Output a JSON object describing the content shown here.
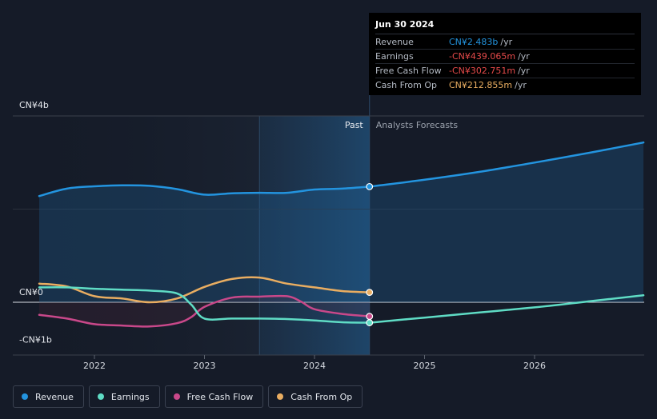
{
  "chart_data": {
    "type": "line",
    "title": "",
    "xlabel": "",
    "ylabel": "",
    "ylim": [
      -1.0,
      4.0
    ],
    "x_ticks": [
      {
        "label": "2022",
        "value": 2022.0
      },
      {
        "label": "2023",
        "value": 2023.0
      },
      {
        "label": "2024",
        "value": 2024.0
      },
      {
        "label": "2025",
        "value": 2025.0
      },
      {
        "label": "2026",
        "value": 2026.0
      }
    ],
    "y_labels": [
      {
        "label": "CN¥4b",
        "value": 4.0
      },
      {
        "label": "CN¥0",
        "value": 0.0
      },
      {
        "label": "-CN¥1b",
        "value": -1.0
      }
    ],
    "past_label": "Past",
    "forecast_label": "Analysts Forecasts",
    "split_x": 2024.5,
    "highlight_start_x": 2023.5,
    "series": [
      {
        "name": "Revenue",
        "color": "#2394df",
        "x": [
          2021.5,
          2021.75,
          2022.0,
          2022.25,
          2022.5,
          2022.75,
          2023.0,
          2023.25,
          2023.5,
          2023.75,
          2024.0,
          2024.25,
          2024.5
        ],
        "values": [
          2.28,
          2.44,
          2.49,
          2.51,
          2.5,
          2.43,
          2.31,
          2.34,
          2.35,
          2.35,
          2.42,
          2.44,
          2.483
        ],
        "forecast_x": [
          2024.5,
          2025.0,
          2025.5,
          2026.0,
          2026.5,
          2026.99
        ],
        "forecast_values": [
          2.483,
          2.63,
          2.8,
          3.0,
          3.21,
          3.43
        ]
      },
      {
        "name": "Earnings",
        "color": "#5fdcc5",
        "x": [
          2021.5,
          2021.75,
          2022.0,
          2022.25,
          2022.5,
          2022.75,
          2022.88,
          2023.0,
          2023.25,
          2023.5,
          2023.75,
          2024.0,
          2024.25,
          2024.5
        ],
        "values": [
          0.32,
          0.32,
          0.29,
          0.27,
          0.25,
          0.19,
          -0.05,
          -0.35,
          -0.35,
          -0.35,
          -0.36,
          -0.39,
          -0.43,
          -0.439
        ],
        "forecast_x": [
          2024.5,
          2025.0,
          2025.5,
          2026.0,
          2026.5,
          2026.99
        ],
        "forecast_values": [
          -0.439,
          -0.33,
          -0.22,
          -0.11,
          0.02,
          0.15
        ]
      },
      {
        "name": "Free Cash Flow",
        "color": "#c9488a",
        "x": [
          2021.5,
          2021.75,
          2022.0,
          2022.25,
          2022.5,
          2022.75,
          2022.88,
          2023.0,
          2023.25,
          2023.5,
          2023.75,
          2023.88,
          2024.0,
          2024.25,
          2024.5
        ],
        "values": [
          -0.27,
          -0.35,
          -0.47,
          -0.5,
          -0.52,
          -0.45,
          -0.32,
          -0.1,
          0.1,
          0.12,
          0.13,
          0.01,
          -0.15,
          -0.25,
          -0.303
        ]
      },
      {
        "name": "Cash From Op",
        "color": "#e9ad61",
        "x": [
          2021.5,
          2021.75,
          2022.0,
          2022.25,
          2022.5,
          2022.75,
          2023.0,
          2023.25,
          2023.5,
          2023.75,
          2024.0,
          2024.25,
          2024.5
        ],
        "values": [
          0.4,
          0.34,
          0.13,
          0.08,
          0.0,
          0.08,
          0.33,
          0.5,
          0.53,
          0.4,
          0.32,
          0.24,
          0.213
        ]
      }
    ]
  },
  "tooltip": {
    "date": "Jun 30 2024",
    "rows": [
      {
        "name": "Revenue",
        "value": "CN¥2.483b",
        "unit": "/yr",
        "color": "#2394df"
      },
      {
        "name": "Earnings",
        "value": "-CN¥439.065m",
        "unit": "/yr",
        "color": "#e64a4a"
      },
      {
        "name": "Free Cash Flow",
        "value": "-CN¥302.751m",
        "unit": "/yr",
        "color": "#e64a4a"
      },
      {
        "name": "Cash From Op",
        "value": "CN¥212.855m",
        "unit": "/yr",
        "color": "#e9ad61"
      }
    ]
  },
  "legend": [
    {
      "label": "Revenue",
      "color": "#2394df"
    },
    {
      "label": "Earnings",
      "color": "#5fdcc5"
    },
    {
      "label": "Free Cash Flow",
      "color": "#c9488a"
    },
    {
      "label": "Cash From Op",
      "color": "#e9ad61"
    }
  ]
}
